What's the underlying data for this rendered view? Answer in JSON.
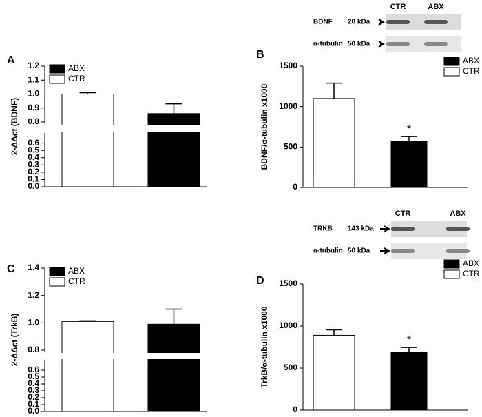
{
  "chart_data": [
    {
      "type": "bar",
      "panel": "A",
      "y_label": "2-ΔΔct (BDNF)",
      "series": [
        {
          "name": "CTR",
          "color": "#ffffff",
          "values": [
            1.0
          ],
          "errors": [
            0.01
          ]
        },
        {
          "name": "ABX",
          "color": "#000000",
          "values": [
            0.86
          ],
          "errors": [
            0.07
          ]
        }
      ],
      "ylim": [
        0,
        1.2
      ],
      "y_break": [
        0.72,
        0.8
      ],
      "yticks": [
        {
          "value": 0,
          "label": "0.0"
        },
        0.1,
        0.2,
        0.3,
        0.4,
        0.5,
        0.6,
        0.8,
        0.9,
        {
          "value": 1,
          "label": "1.0"
        },
        1.1,
        1.2
      ]
    },
    {
      "type": "bar",
      "panel": "B",
      "y_label": "BDNF/α-tubulin x1000",
      "series": [
        {
          "name": "CTR",
          "color": "#ffffff",
          "values": [
            1100
          ],
          "errors": [
            190
          ]
        },
        {
          "name": "ABX",
          "color": "#000000",
          "values": [
            575
          ],
          "errors": [
            55
          ],
          "annotation": "*"
        }
      ],
      "ylim": [
        0,
        1500
      ],
      "yticks": [
        0,
        500,
        1000,
        1500
      ],
      "blot": {
        "lanes": [
          "CTR",
          "ABX"
        ],
        "rows": [
          {
            "protein": "BDNF",
            "size": "28 kDa"
          },
          {
            "protein": "α-tubulin",
            "size": "50 kDa"
          }
        ]
      }
    },
    {
      "type": "bar",
      "panel": "C",
      "y_label": "2-ΔΔct (TrkB)",
      "series": [
        {
          "name": "CTR",
          "color": "#ffffff",
          "values": [
            1.01
          ],
          "errors": [
            0.005
          ]
        },
        {
          "name": "ABX",
          "color": "#000000",
          "values": [
            0.99
          ],
          "errors": [
            0.11
          ]
        }
      ],
      "ylim": [
        0,
        1.4
      ],
      "y_break": [
        0.72,
        0.8
      ],
      "yticks": [
        {
          "value": 0,
          "label": "0.0"
        },
        0.1,
        0.2,
        0.3,
        0.4,
        0.5,
        0.6,
        0.8,
        {
          "value": 1,
          "label": "1.0"
        },
        1.2,
        1.4
      ]
    },
    {
      "type": "bar",
      "panel": "D",
      "y_label": "TrkB/α-tubulin x1000",
      "series": [
        {
          "name": "CTR",
          "color": "#ffffff",
          "values": [
            890
          ],
          "errors": [
            65
          ]
        },
        {
          "name": "ABX",
          "color": "#000000",
          "values": [
            685
          ],
          "errors": [
            60
          ],
          "annotation": "*"
        }
      ],
      "ylim": [
        0,
        1500
      ],
      "yticks": [
        0,
        500,
        1000,
        1500
      ],
      "blot": {
        "lanes": [
          "CTR",
          "ABX"
        ],
        "rows": [
          {
            "protein": "TRKB",
            "size": "143 kDa"
          },
          {
            "protein": "α-tubulin",
            "size": "50 kDa"
          }
        ]
      }
    }
  ]
}
